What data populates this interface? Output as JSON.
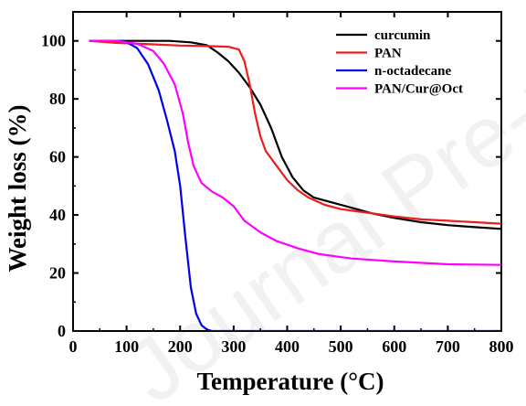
{
  "watermark": "Journal Pre-proof",
  "chart_data": {
    "type": "line",
    "xlabel": "Temperature (°C)",
    "ylabel": "Weight loss (%)",
    "xlim": [
      0,
      800
    ],
    "ylim": [
      0,
      110
    ],
    "xticks": [
      0,
      100,
      200,
      300,
      400,
      500,
      600,
      700,
      800
    ],
    "yticks": [
      0,
      20,
      40,
      60,
      80,
      100
    ],
    "grid": false,
    "legend_position": "top-right",
    "series": [
      {
        "name": "curcumin",
        "color": "#000000",
        "points": [
          [
            30,
            100
          ],
          [
            100,
            100
          ],
          [
            180,
            100
          ],
          [
            220,
            99.5
          ],
          [
            250,
            98.5
          ],
          [
            270,
            96
          ],
          [
            290,
            93
          ],
          [
            310,
            89
          ],
          [
            330,
            84
          ],
          [
            350,
            78
          ],
          [
            370,
            70
          ],
          [
            390,
            60
          ],
          [
            410,
            53
          ],
          [
            430,
            48.5
          ],
          [
            450,
            46
          ],
          [
            480,
            44.5
          ],
          [
            520,
            42.5
          ],
          [
            560,
            40.5
          ],
          [
            600,
            39
          ],
          [
            650,
            37.5
          ],
          [
            700,
            36.5
          ],
          [
            750,
            35.8
          ],
          [
            800,
            35.2
          ]
        ]
      },
      {
        "name": "PAN",
        "color": "#ee1c1c",
        "points": [
          [
            30,
            100
          ],
          [
            80,
            99.3
          ],
          [
            150,
            98.8
          ],
          [
            200,
            98.4
          ],
          [
            250,
            98.2
          ],
          [
            290,
            98
          ],
          [
            310,
            97
          ],
          [
            320,
            93
          ],
          [
            330,
            85
          ],
          [
            340,
            75
          ],
          [
            350,
            67
          ],
          [
            360,
            62
          ],
          [
            380,
            57
          ],
          [
            400,
            52
          ],
          [
            420,
            48.5
          ],
          [
            440,
            46
          ],
          [
            470,
            43.5
          ],
          [
            500,
            42
          ],
          [
            550,
            40.8
          ],
          [
            600,
            39.5
          ],
          [
            650,
            38.5
          ],
          [
            700,
            38
          ],
          [
            750,
            37.5
          ],
          [
            800,
            37
          ]
        ]
      },
      {
        "name": "n-octadecane",
        "color": "#0000ee",
        "points": [
          [
            30,
            100
          ],
          [
            80,
            100
          ],
          [
            100,
            99.6
          ],
          [
            120,
            97.5
          ],
          [
            140,
            92
          ],
          [
            160,
            83
          ],
          [
            175,
            73
          ],
          [
            190,
            62
          ],
          [
            200,
            50
          ],
          [
            210,
            32
          ],
          [
            220,
            15
          ],
          [
            230,
            6
          ],
          [
            240,
            2
          ],
          [
            250,
            0.5
          ],
          [
            260,
            0
          ],
          [
            400,
            0
          ],
          [
            800,
            0
          ]
        ]
      },
      {
        "name": "PAN/Cur@Oct",
        "color": "#ff00ff",
        "points": [
          [
            30,
            100
          ],
          [
            80,
            100
          ],
          [
            120,
            99
          ],
          [
            150,
            96.5
          ],
          [
            170,
            92
          ],
          [
            190,
            85
          ],
          [
            205,
            75
          ],
          [
            215,
            65
          ],
          [
            225,
            57
          ],
          [
            240,
            51
          ],
          [
            260,
            48
          ],
          [
            280,
            46
          ],
          [
            300,
            43
          ],
          [
            320,
            38
          ],
          [
            350,
            34
          ],
          [
            380,
            31
          ],
          [
            420,
            28.5
          ],
          [
            460,
            26.5
          ],
          [
            520,
            25
          ],
          [
            600,
            24
          ],
          [
            700,
            23
          ],
          [
            800,
            22.8
          ]
        ]
      }
    ]
  }
}
